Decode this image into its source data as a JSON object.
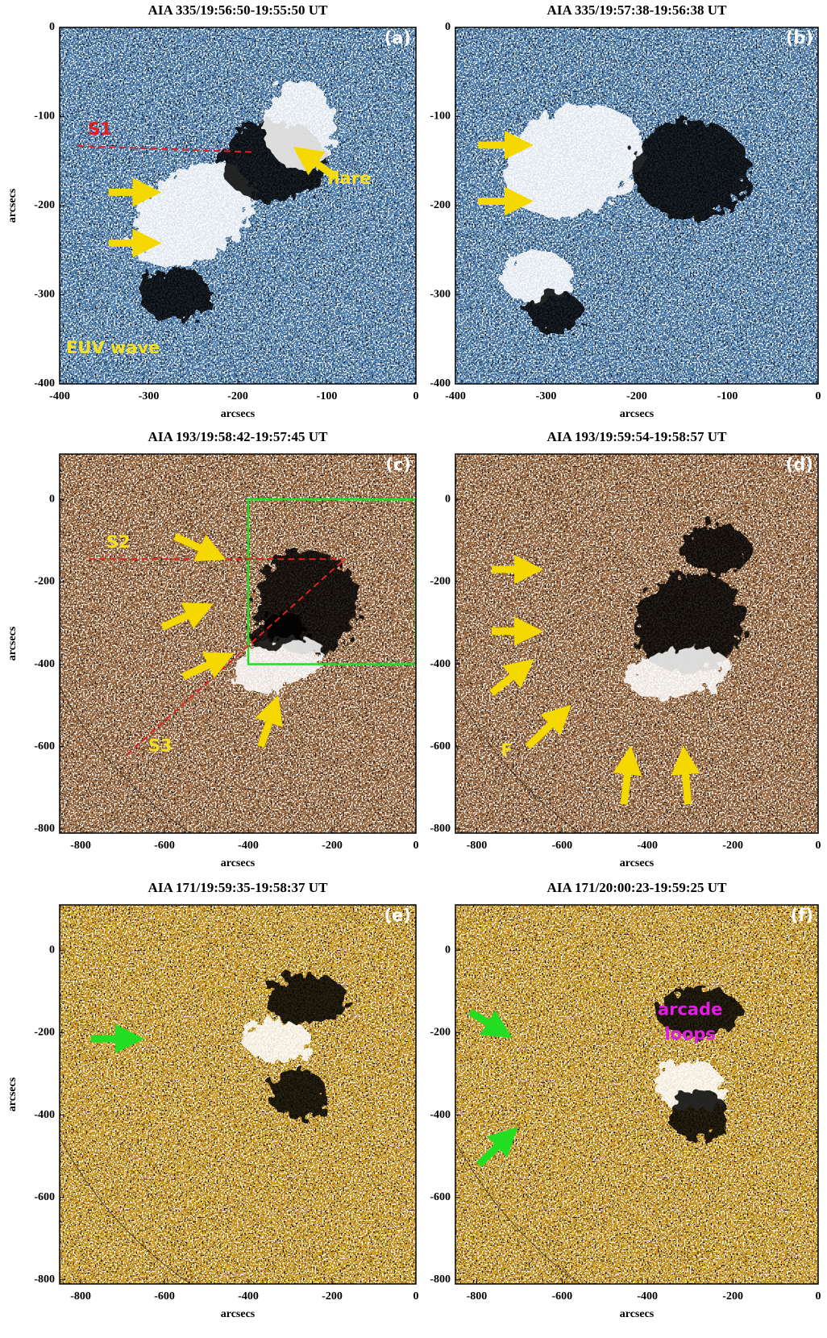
{
  "panels": [
    {
      "title": "AIA 335/19:56:50-19:55:50 UT",
      "label": "(a)",
      "xlabel": "arcsecs",
      "ylabel": "arcsecs",
      "xlim": [
        -400,
        0
      ],
      "ylim": [
        0,
        -400
      ],
      "xticks": [
        -400,
        -300,
        -200,
        -100,
        0
      ],
      "yticks": [
        0,
        -100,
        -200,
        -300,
        -400
      ],
      "base_color": "#4f7fae",
      "annotations": [
        {
          "text": "S1",
          "color": "#e02020"
        },
        {
          "text": "flare",
          "color": "#f5e020"
        },
        {
          "text": "EUV wave",
          "color": "#f5e020"
        }
      ]
    },
    {
      "title": "AIA 335/19:57:38-19:56:38 UT",
      "label": "(b)",
      "xlabel": "arcsecs",
      "xlim": [
        -400,
        0
      ],
      "ylim": [
        0,
        -400
      ],
      "xticks": [
        -400,
        -300,
        -200,
        -100,
        0
      ],
      "yticks": [
        0,
        -100,
        -200,
        -300,
        -400
      ],
      "base_color": "#4f7fae",
      "annotations": []
    },
    {
      "title": "AIA 193/19:58:42-19:57:45 UT",
      "label": "(c)",
      "xlabel": "arcsecs",
      "ylabel": "arcsecs",
      "xlim": [
        -850,
        0
      ],
      "ylim": [
        110,
        -810
      ],
      "xticks": [
        -800,
        -600,
        -400,
        -200,
        0
      ],
      "yticks": [
        0,
        -200,
        -400,
        -600,
        -800
      ],
      "base_color": "#9b6a40",
      "annotations": [
        {
          "text": "S2",
          "color": "#f5e020"
        },
        {
          "text": "S3",
          "color": "#f5e020"
        }
      ]
    },
    {
      "title": "AIA 193/19:59:54-19:58:57 UT",
      "label": "(d)",
      "xlabel": "arcsecs",
      "xlim": [
        -850,
        0
      ],
      "ylim": [
        110,
        -810
      ],
      "xticks": [
        -800,
        -600,
        -400,
        -200,
        0
      ],
      "yticks": [
        0,
        -200,
        -400,
        -600,
        -800
      ],
      "base_color": "#9b6a40",
      "annotations": [
        {
          "text": "F",
          "color": "#f5e020"
        }
      ]
    },
    {
      "title": "AIA 171/19:59:35-19:58:37 UT",
      "label": "(e)",
      "xlabel": "arcsecs",
      "ylabel": "arcsecs",
      "xlim": [
        -850,
        0
      ],
      "ylim": [
        110,
        -810
      ],
      "xticks": [
        -800,
        -600,
        -400,
        -200,
        0
      ],
      "yticks": [
        0,
        -200,
        -400,
        -600,
        -800
      ],
      "base_color": "#c8951f",
      "annotations": []
    },
    {
      "title": "AIA 171/20:00:23-19:59:25 UT",
      "label": "(f)",
      "xlabel": "arcsecs",
      "xlim": [
        -850,
        0
      ],
      "ylim": [
        110,
        -810
      ],
      "xticks": [
        -800,
        -600,
        -400,
        -200,
        0
      ],
      "yticks": [
        0,
        -200,
        -400,
        -600,
        -800
      ],
      "base_color": "#c8951f",
      "annotations": [
        {
          "text": "arcade",
          "color": "#e020e0"
        },
        {
          "text": "loops",
          "color": "#e020e0"
        }
      ]
    }
  ]
}
